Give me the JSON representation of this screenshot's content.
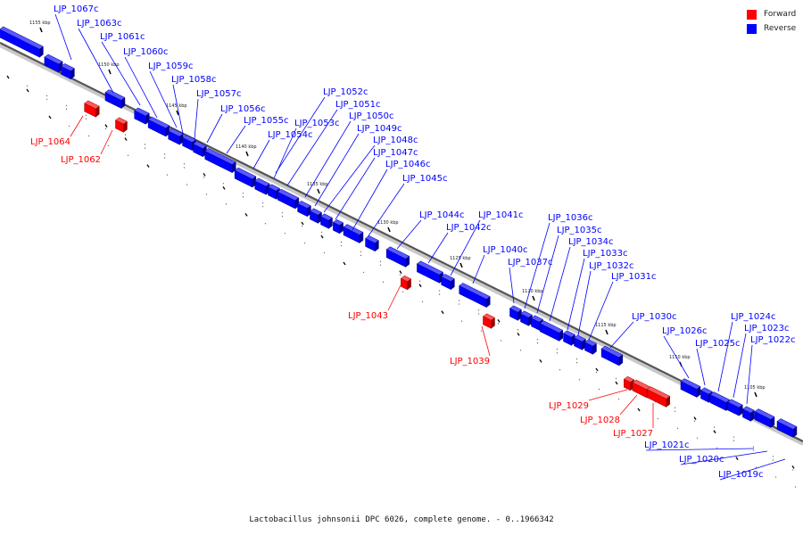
{
  "legend": {
    "forward_label": "Forward",
    "reverse_label": "Reverse",
    "forward_color": "#ff0000",
    "reverse_color": "#0000ff"
  },
  "caption": "Lactobacillus johnsonii DPC 6026, complete genome. - 0..1966342",
  "scale_labels": [
    "1155 kbp",
    "1150 kbp",
    "1145 kbp",
    "1140 kbp",
    "1135 kbp",
    "1130 kbp",
    "1125 kbp",
    "1120 kbp",
    "1115 kbp",
    "1110 kbp",
    "1105 kbp"
  ],
  "reverse_genes": [
    "LJP_1067c",
    "LJP_1063c",
    "LJP_1061c",
    "LJP_1060c",
    "LJP_1059c",
    "LJP_1058c",
    "LJP_1057c",
    "LJP_1056c",
    "LJP_1055c",
    "LJP_1054c",
    "LJP_1053c",
    "LJP_1052c",
    "LJP_1051c",
    "LJP_1050c",
    "LJP_1049c",
    "LJP_1048c",
    "LJP_1047c",
    "LJP_1046c",
    "LJP_1045c",
    "LJP_1044c",
    "LJP_1042c",
    "LJP_1041c",
    "LJP_1040c",
    "LJP_1037c",
    "LJP_1036c",
    "LJP_1035c",
    "LJP_1034c",
    "LJP_1033c",
    "LJP_1032c",
    "LJP_1031c",
    "LJP_1030c",
    "LJP_1026c",
    "LJP_1025c",
    "LJP_1024c",
    "LJP_1023c",
    "LJP_1022c",
    "LJP_1021c",
    "LJP_1020c",
    "LJP_1019c"
  ],
  "forward_genes": [
    "LJP_1064",
    "LJP_1062",
    "LJP_1043",
    "LJP_1039",
    "LJP_1029",
    "LJP_1028",
    "LJP_1027"
  ]
}
